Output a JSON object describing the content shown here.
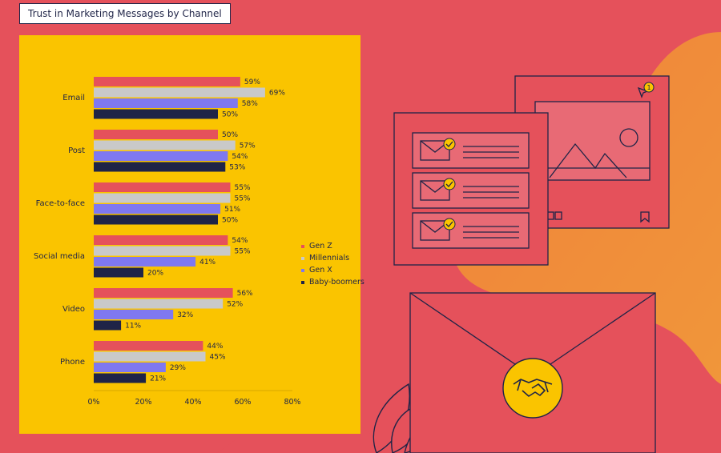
{
  "title": "Trust in Marketing Messages by Channel",
  "colors": {
    "background": "#E5515B",
    "panel": "#FAC400",
    "gen_z": "#E5515B",
    "millennials": "#C9C9C9",
    "gen_x": "#7F78F0",
    "baby_boomers": "#1F2447"
  },
  "chart_data": {
    "type": "bar",
    "orientation": "horizontal",
    "categories": [
      "Email",
      "Post",
      "Face-to-face",
      "Social media",
      "Video",
      "Phone"
    ],
    "series": [
      {
        "name": "Gen Z",
        "values": [
          59,
          50,
          55,
          54,
          56,
          44
        ],
        "labels": [
          "59%",
          "50%",
          "55%",
          "54%",
          "56%",
          "44%"
        ]
      },
      {
        "name": "Millennials",
        "values": [
          69,
          57,
          55,
          55,
          52,
          45
        ],
        "labels": [
          "69%",
          "57%",
          "55%",
          "55%",
          "52%",
          "45%"
        ]
      },
      {
        "name": "Gen X",
        "values": [
          58,
          54,
          51,
          41,
          32,
          29
        ],
        "labels": [
          "58%",
          "54%",
          "51%",
          "41%",
          "32%",
          "29%"
        ]
      },
      {
        "name": "Baby-boomers",
        "values": [
          50,
          53,
          50,
          20,
          11,
          21
        ],
        "labels": [
          "50%",
          "53%",
          "50%",
          "20%",
          "11%",
          "21%"
        ]
      }
    ],
    "xlim": [
      0,
      80
    ],
    "xticks": [
      "0%",
      "20%",
      "40%",
      "60%",
      "80%"
    ],
    "legend_position": "right",
    "grid": false
  },
  "illustration": {
    "notification_count": "1",
    "icons": [
      "mail-icon",
      "check-icon",
      "image-icon",
      "handshake-icon",
      "envelope-icon",
      "bookmark-icon",
      "leaf-icon"
    ]
  }
}
